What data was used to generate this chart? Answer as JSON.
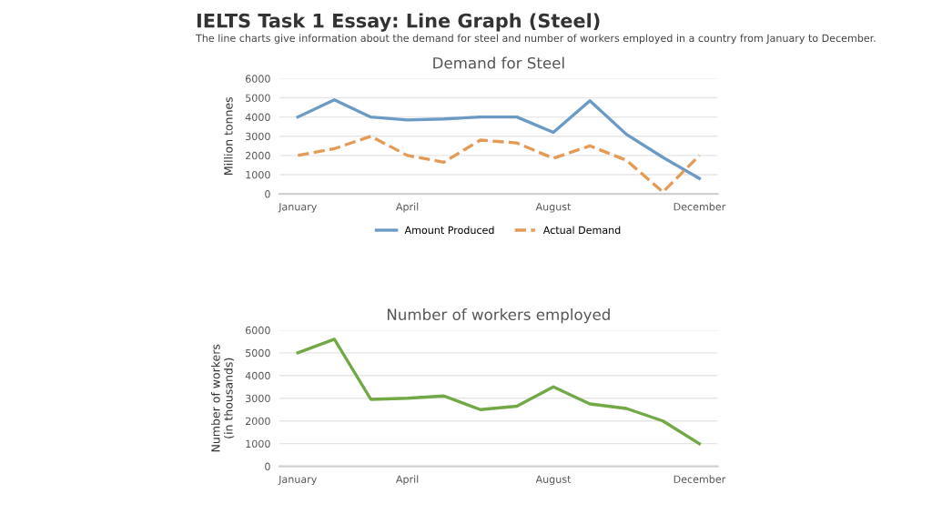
{
  "chart_data": [
    {
      "type": "other",
      "title": "IELTS Task 1 Essay: Line Graph (Steel)",
      "subtitle": "The line charts give information about the demand for steel and number of workers employed in a country from January to December."
    },
    {
      "type": "line",
      "title": "Demand for Steel",
      "ylabel": "Million tonnes",
      "categories": [
        "January",
        null,
        null,
        "April",
        null,
        null,
        null,
        "August",
        null,
        null,
        null,
        "December"
      ],
      "series": [
        {
          "name": "Amount Produced",
          "color": "#6b9ac4",
          "line_style": "solid",
          "values": [
            4000,
            4900,
            4000,
            3850,
            3900,
            4000,
            4000,
            3200,
            4850,
            3100,
            1900,
            800
          ]
        },
        {
          "name": "Actual Demand",
          "color": "#e49b58",
          "line_style": "dashed",
          "values": [
            2000,
            2350,
            3000,
            2000,
            1650,
            2800,
            2650,
            1850,
            2500,
            1750,
            100,
            2000
          ]
        }
      ],
      "ylim": [
        0,
        6000
      ],
      "yticks": [
        0,
        1000,
        2000,
        3000,
        4000,
        5000,
        6000
      ],
      "grid": "y",
      "legend": "bottom"
    },
    {
      "type": "line",
      "title": "Number of workers employed",
      "ylabel": "Number of workers\n(in thousands)",
      "categories": [
        "January",
        null,
        null,
        "April",
        null,
        null,
        null,
        "August",
        null,
        null,
        null,
        "December"
      ],
      "series": [
        {
          "color": "#72a846",
          "line_style": "solid",
          "values": [
            5000,
            5600,
            2950,
            3000,
            3100,
            2500,
            2650,
            3500,
            2750,
            2550,
            2000,
            1000
          ]
        }
      ],
      "ylim": [
        0,
        6000
      ],
      "yticks": [
        0,
        1000,
        2000,
        3000,
        4000,
        5000,
        6000
      ],
      "grid": "y",
      "legend": false
    }
  ]
}
